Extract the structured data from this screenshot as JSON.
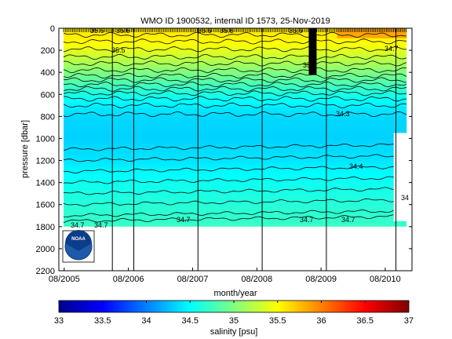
{
  "chart_data": {
    "type": "heatmap",
    "title": "WMO ID 1900532, internal ID 1573, 25-Nov-2019",
    "xlabel": "month/year",
    "ylabel": "pressure [dbar]",
    "x_ticks": [
      "08/2005",
      "08/2006",
      "08/2007",
      "08/2008",
      "08/2009",
      "08/2010"
    ],
    "x_range": [
      "2005-07",
      "2011-01"
    ],
    "y_ticks": [
      0,
      200,
      400,
      600,
      800,
      1000,
      1200,
      1400,
      1600,
      1800,
      2000,
      2200
    ],
    "ylim": [
      0,
      2200
    ],
    "y_reversed": true,
    "colorbar": {
      "label": "salinity [psu]",
      "ticks": [
        33,
        33.5,
        34,
        34.5,
        35,
        35.5,
        36,
        36.5,
        37
      ],
      "range": [
        33,
        37
      ],
      "colormap": "jet"
    },
    "profile_max_depth_dbar": 1800,
    "contour_labels": [
      "35.6",
      "35.6",
      "35.5",
      "35.6",
      "35.6",
      "35.6",
      "35.2",
      "34.3",
      "34.4",
      "34.7",
      "34.7",
      "34.7",
      "34.7",
      "34.7",
      "34.7",
      "34"
    ],
    "salinity_profile": {
      "pressure": [
        0,
        100,
        200,
        300,
        400,
        500,
        600,
        700,
        800,
        1000,
        1200,
        1400,
        1600,
        1800
      ],
      "salinity": [
        35.6,
        35.55,
        35.4,
        35.2,
        35.0,
        34.8,
        34.6,
        34.45,
        34.35,
        34.32,
        34.4,
        34.55,
        34.65,
        34.72
      ]
    },
    "vertical_lines": [
      "2006-05",
      "2006-09",
      "2007-09",
      "2008-09",
      "2009-09",
      "2010-10"
    ]
  },
  "logo": {
    "text": "NOAA"
  }
}
